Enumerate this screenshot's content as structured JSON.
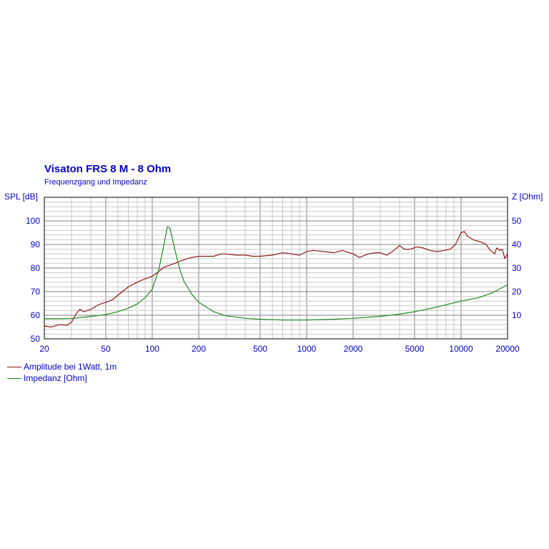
{
  "chart_data": {
    "type": "line",
    "title": "Visaton  FRS 8 M - 8 Ohm",
    "subtitle": "Frequenzgang und Impedanz",
    "ylabel_left": "SPL [dB]",
    "ylabel_right": "Z [Ohm]",
    "x_scale": "log",
    "xlim": [
      20,
      20000
    ],
    "ylim_left": [
      50,
      110
    ],
    "ylim_right": [
      0,
      60
    ],
    "x_ticks": [
      20,
      50,
      100,
      200,
      500,
      1000,
      2000,
      5000,
      10000,
      20000
    ],
    "x_tick_labels": [
      "20",
      "50",
      "100",
      "200",
      "500",
      "1000",
      "2000",
      "5000",
      "10000",
      "20000"
    ],
    "y_ticks_left": [
      50,
      60,
      70,
      80,
      90,
      100
    ],
    "y_tick_labels_left": [
      "50",
      "60",
      "70",
      "80",
      "90",
      "100"
    ],
    "y_ticks_right": [
      10,
      20,
      30,
      40,
      50
    ],
    "y_tick_labels_right": [
      "10",
      "20",
      "30",
      "40",
      "50"
    ],
    "grid": true,
    "legend_placement": "bottom-left",
    "series": [
      {
        "name": "Amplitude bei 1Watt, 1m",
        "axis": "left",
        "color": "#8b1a1a",
        "points": [
          [
            20,
            55.5
          ],
          [
            22,
            55
          ],
          [
            25,
            56
          ],
          [
            28,
            55.8
          ],
          [
            30,
            57
          ],
          [
            32,
            60.5
          ],
          [
            34,
            62.5
          ],
          [
            36,
            61.5
          ],
          [
            40,
            62.5
          ],
          [
            45,
            64.5
          ],
          [
            50,
            65.5
          ],
          [
            55,
            66.5
          ],
          [
            60,
            68.5
          ],
          [
            70,
            72
          ],
          [
            80,
            74
          ],
          [
            90,
            75.5
          ],
          [
            100,
            76.5
          ],
          [
            110,
            78.5
          ],
          [
            120,
            80.5
          ],
          [
            140,
            82
          ],
          [
            160,
            83.5
          ],
          [
            180,
            84.5
          ],
          [
            200,
            85
          ],
          [
            250,
            85
          ],
          [
            280,
            86
          ],
          [
            300,
            86
          ],
          [
            350,
            85.5
          ],
          [
            400,
            85.5
          ],
          [
            450,
            85
          ],
          [
            500,
            85
          ],
          [
            600,
            85.5
          ],
          [
            700,
            86.5
          ],
          [
            800,
            86
          ],
          [
            900,
            85.5
          ],
          [
            1000,
            87
          ],
          [
            1100,
            87.5
          ],
          [
            1300,
            87
          ],
          [
            1500,
            86.5
          ],
          [
            1700,
            87.5
          ],
          [
            2000,
            86
          ],
          [
            2200,
            84.5
          ],
          [
            2500,
            86
          ],
          [
            2800,
            86.5
          ],
          [
            3000,
            86.5
          ],
          [
            3300,
            85.5
          ],
          [
            3600,
            87
          ],
          [
            4000,
            89.5
          ],
          [
            4300,
            88
          ],
          [
            4700,
            88
          ],
          [
            5200,
            89
          ],
          [
            5700,
            88.5
          ],
          [
            6300,
            87.5
          ],
          [
            7000,
            87
          ],
          [
            7800,
            87.5
          ],
          [
            8500,
            88
          ],
          [
            9200,
            90
          ],
          [
            10000,
            95
          ],
          [
            10500,
            95.5
          ],
          [
            11000,
            93.5
          ],
          [
            12000,
            92
          ],
          [
            13500,
            91
          ],
          [
            14500,
            90
          ],
          [
            15500,
            87.5
          ],
          [
            16500,
            86
          ],
          [
            17000,
            88.5
          ],
          [
            17800,
            87.5
          ],
          [
            18500,
            88
          ],
          [
            19200,
            84
          ],
          [
            20000,
            86
          ]
        ]
      },
      {
        "name": "Impedanz [Ohm]",
        "axis": "right",
        "color": "#1e8c1e",
        "points": [
          [
            20,
            8.5
          ],
          [
            30,
            8.6
          ],
          [
            40,
            9.5
          ],
          [
            50,
            10.3
          ],
          [
            60,
            11.5
          ],
          [
            70,
            13
          ],
          [
            80,
            14.8
          ],
          [
            90,
            17.5
          ],
          [
            100,
            21
          ],
          [
            110,
            29
          ],
          [
            120,
            41
          ],
          [
            125,
            47.5
          ],
          [
            130,
            47
          ],
          [
            140,
            38
          ],
          [
            150,
            30
          ],
          [
            160,
            24.5
          ],
          [
            180,
            19
          ],
          [
            200,
            15.5
          ],
          [
            250,
            11.5
          ],
          [
            300,
            9.8
          ],
          [
            400,
            8.7
          ],
          [
            500,
            8.3
          ],
          [
            700,
            8
          ],
          [
            1000,
            8
          ],
          [
            1500,
            8.3
          ],
          [
            2000,
            8.7
          ],
          [
            3000,
            9.5
          ],
          [
            4000,
            10.5
          ],
          [
            5000,
            11.5
          ],
          [
            7000,
            13.5
          ],
          [
            10000,
            16
          ],
          [
            13000,
            17.5
          ],
          [
            16000,
            19.5
          ],
          [
            20000,
            23
          ]
        ]
      }
    ]
  }
}
